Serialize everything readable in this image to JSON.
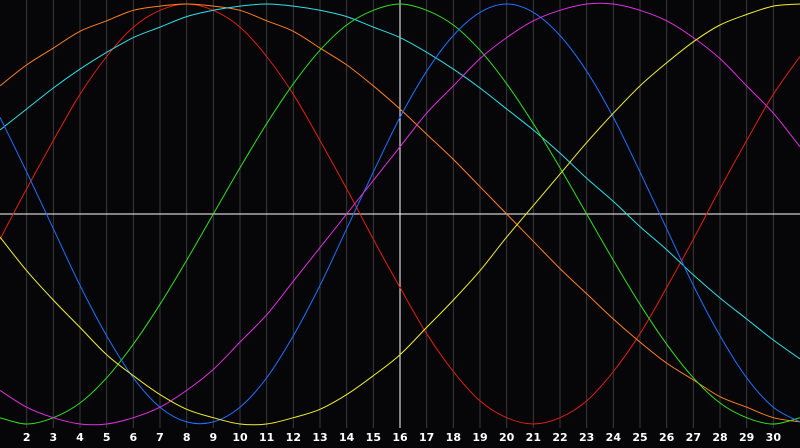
{
  "chart_data": {
    "type": "line",
    "x": [
      1,
      2,
      3,
      4,
      5,
      6,
      7,
      8,
      9,
      10,
      11,
      12,
      13,
      14,
      15,
      16,
      17,
      18,
      19,
      20,
      21,
      22,
      23,
      24,
      25,
      26,
      27,
      28,
      29,
      30,
      31
    ],
    "xlim": [
      1,
      31
    ],
    "xticks": [
      2,
      3,
      4,
      5,
      6,
      7,
      8,
      9,
      10,
      11,
      12,
      13,
      14,
      15,
      16,
      17,
      18,
      19,
      20,
      21,
      22,
      23,
      24,
      25,
      26,
      27,
      28,
      29,
      30
    ],
    "ylim": [
      -100,
      100
    ],
    "grid": true,
    "highlight_x": 16,
    "series": [
      {
        "color": "#e02010",
        "values": [
          -12,
          12,
          35,
          57,
          75,
          89,
          97,
          100,
          97,
          89,
          75,
          57,
          35,
          12,
          -12,
          -35,
          -57,
          -75,
          -89,
          -97,
          -100,
          -97,
          -89,
          -75,
          -57,
          -35,
          -12,
          12,
          35,
          57,
          75
        ]
      },
      {
        "color": "#ff8020",
        "values": [
          61,
          71,
          79,
          87,
          92,
          97,
          99,
          100,
          99,
          97,
          92,
          87,
          79,
          71,
          61,
          50,
          38,
          26,
          13,
          0,
          -13,
          -26,
          -38,
          -50,
          -61,
          -71,
          -79,
          -87,
          -92,
          -97,
          -99
        ]
      },
      {
        "color": "#30e0e8",
        "values": [
          40,
          50,
          60,
          69,
          77,
          84,
          89,
          94,
          97,
          99,
          100,
          99,
          97,
          94,
          89,
          84,
          77,
          69,
          60,
          50,
          40,
          29,
          17,
          6,
          -6,
          -17,
          -29,
          -40,
          -50,
          -60,
          -69
        ]
      },
      {
        "color": "#30e020",
        "values": [
          -97,
          -100,
          -97,
          -90,
          -78,
          -62,
          -43,
          -22,
          0,
          22,
          43,
          62,
          78,
          90,
          97,
          100,
          97,
          90,
          78,
          62,
          43,
          22,
          0,
          -22,
          -43,
          -62,
          -78,
          -90,
          -97,
          -100,
          -97
        ]
      },
      {
        "color": "#2070ff",
        "values": [
          46,
          20,
          -7,
          -34,
          -58,
          -78,
          -92,
          -99,
          -99,
          -92,
          -78,
          -58,
          -34,
          -7,
          20,
          46,
          68,
          85,
          96,
          100,
          96,
          85,
          68,
          46,
          20,
          -7,
          -34,
          -58,
          -78,
          -92,
          -99
        ]
      },
      {
        "color": "#e030e0",
        "values": [
          -84,
          -92,
          -97,
          -100,
          -100,
          -97,
          -92,
          -84,
          -74,
          -61,
          -48,
          -32,
          -16,
          0,
          16,
          32,
          48,
          61,
          74,
          84,
          92,
          97,
          100,
          100,
          97,
          92,
          84,
          74,
          61,
          48,
          32
        ]
      },
      {
        "color": "#f0f030",
        "values": [
          -11,
          -27,
          -41,
          -54,
          -67,
          -77,
          -86,
          -93,
          -97,
          -100,
          -100,
          -97,
          -93,
          -86,
          -77,
          -67,
          -54,
          -41,
          -27,
          -11,
          4,
          19,
          34,
          48,
          61,
          72,
          82,
          90,
          95,
          99,
          100
        ]
      }
    ]
  }
}
